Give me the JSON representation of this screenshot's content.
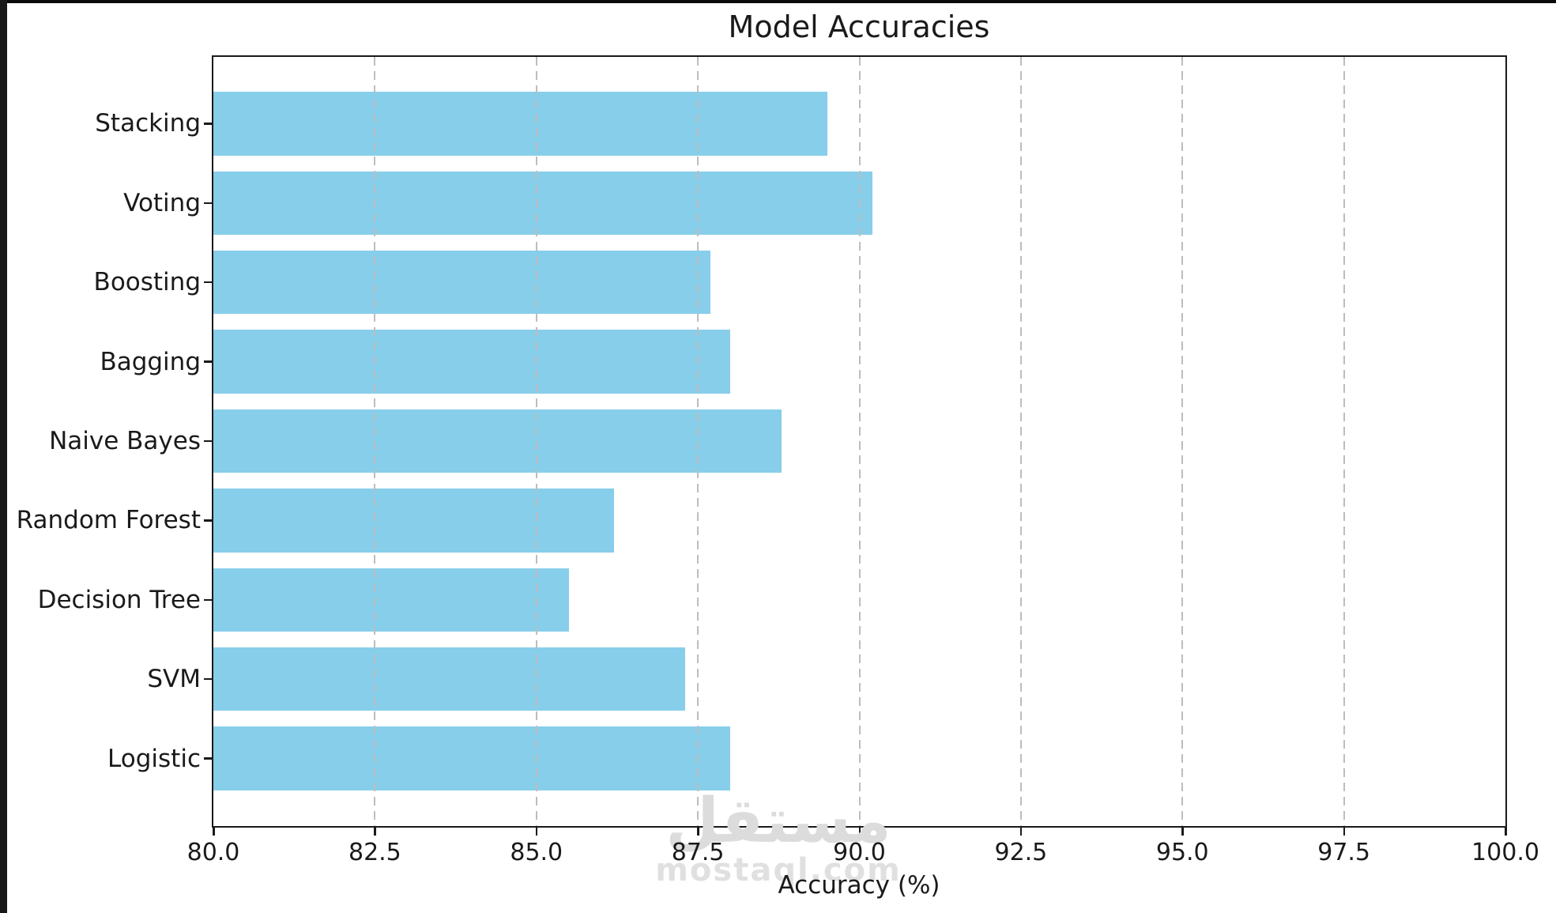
{
  "frame": {
    "left_bar_color": "#181818",
    "top_bar_color": "#0a0a0a",
    "background": "#ffffff"
  },
  "watermark": {
    "logo_text": "مستقل",
    "site_text": "mostaql.com",
    "color": "#dcdcdc"
  },
  "chart_data": {
    "type": "bar",
    "orientation": "horizontal",
    "title": "Model Accuracies",
    "xlabel": "Accuracy (%)",
    "ylabel": "",
    "categories": [
      "Stacking",
      "Voting",
      "Boosting",
      "Bagging",
      "Naive Bayes",
      "Random Forest",
      "Decision Tree",
      "SVM",
      "Logistic"
    ],
    "values": [
      89.5,
      90.2,
      87.7,
      88.0,
      88.8,
      86.2,
      85.5,
      87.3,
      88.0
    ],
    "category_order": "top-to-bottom",
    "xlim": [
      80.0,
      100.0
    ],
    "xticks": [
      80.0,
      82.5,
      85.0,
      87.5,
      90.0,
      92.5,
      95.0,
      97.5,
      100.0
    ],
    "xtick_labels": [
      "80.0",
      "82.5",
      "85.0",
      "87.5",
      "90.0",
      "92.5",
      "95.0",
      "97.5",
      "100.0"
    ],
    "bar_color": "#87ceeb",
    "grid": {
      "axis": "x",
      "linestyle": "dashed",
      "color": "#bdbdbd",
      "on": true
    },
    "legend": "none"
  }
}
